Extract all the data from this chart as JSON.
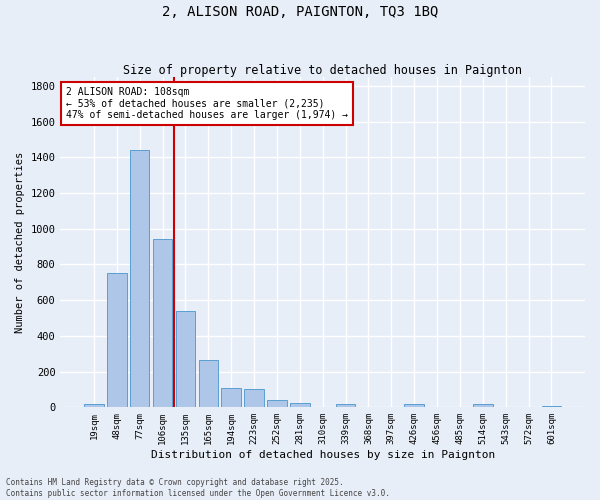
{
  "title": "2, ALISON ROAD, PAIGNTON, TQ3 1BQ",
  "subtitle": "Size of property relative to detached houses in Paignton",
  "xlabel": "Distribution of detached houses by size in Paignton",
  "ylabel": "Number of detached properties",
  "footer_line1": "Contains HM Land Registry data © Crown copyright and database right 2025.",
  "footer_line2": "Contains public sector information licensed under the Open Government Licence v3.0.",
  "categories": [
    "19sqm",
    "48sqm",
    "77sqm",
    "106sqm",
    "135sqm",
    "165sqm",
    "194sqm",
    "223sqm",
    "252sqm",
    "281sqm",
    "310sqm",
    "339sqm",
    "368sqm",
    "397sqm",
    "426sqm",
    "456sqm",
    "485sqm",
    "514sqm",
    "543sqm",
    "572sqm",
    "601sqm"
  ],
  "values": [
    20,
    750,
    1440,
    945,
    540,
    265,
    110,
    100,
    42,
    27,
    0,
    18,
    0,
    0,
    20,
    0,
    0,
    18,
    0,
    0,
    8
  ],
  "bar_color": "#aec6e8",
  "bar_edge_color": "#5a9fd4",
  "background_color": "#e8eef8",
  "grid_color": "#ffffff",
  "vline_color": "#cc0000",
  "vline_x": 3.5,
  "annotation_text": "2 ALISON ROAD: 108sqm\n← 53% of detached houses are smaller (2,235)\n47% of semi-detached houses are larger (1,974) →",
  "annotation_box_color": "#ffffff",
  "annotation_box_edge_color": "#cc0000",
  "ylim": [
    0,
    1850
  ],
  "yticks": [
    0,
    200,
    400,
    600,
    800,
    1000,
    1200,
    1400,
    1600,
    1800
  ],
  "figwidth": 6.0,
  "figheight": 5.0,
  "dpi": 100
}
